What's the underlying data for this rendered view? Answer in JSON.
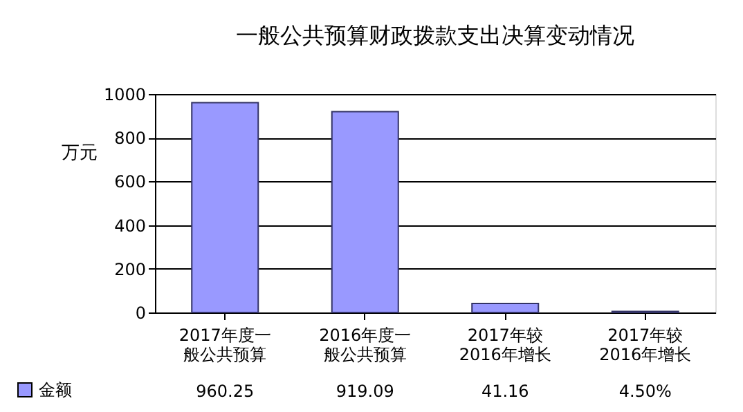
{
  "chart_data": {
    "type": "bar",
    "title": "一般公共预算财政拨款支出决算变动情况",
    "ylabel": "万元",
    "categories": [
      "2017年度一般公共预算",
      "2016年度一般公共预算",
      "2017年较2016年增长",
      "2017年较2016年增长"
    ],
    "series": [
      {
        "name": "金额",
        "color": "#9999ff",
        "values": [
          960.25,
          919.09,
          41.16,
          4.5
        ],
        "value_labels": [
          "960.25",
          "919.09",
          "41.16",
          "4.50%"
        ]
      }
    ],
    "ylim": [
      0,
      1000
    ],
    "yticks": [
      0,
      200,
      400,
      600,
      800,
      {
        "value": 1000,
        "label": "1000"
      }
    ],
    "grid": "y",
    "legend": "bottom left"
  }
}
